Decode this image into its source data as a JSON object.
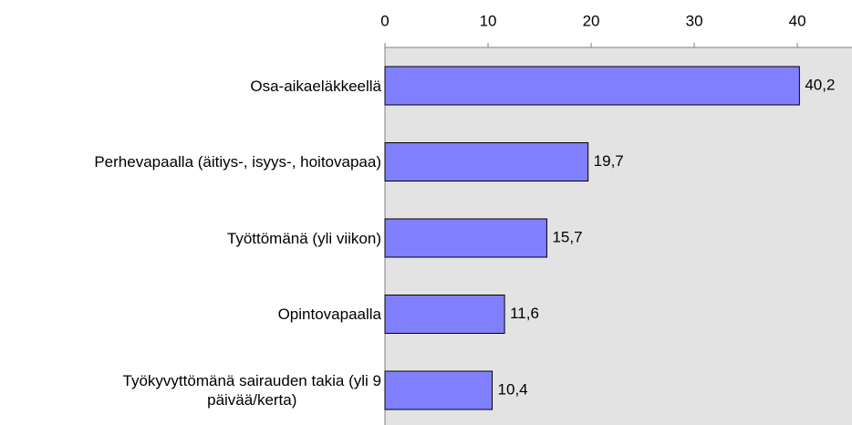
{
  "chart_data": {
    "type": "bar",
    "orientation": "horizontal",
    "categories": [
      "Osa-aikaeläkkeellä",
      "Perhevapaalla (äitiys-, isyys-, hoitovapaa)",
      "Työttömänä (yli viikon)",
      "Opintovapaalla",
      "Työkyvyttömänä sairauden takia (yli 9\npäivää/kerta)"
    ],
    "values": [
      40.2,
      19.7,
      15.7,
      11.6,
      10.4
    ],
    "value_labels": [
      "40,2",
      "19,7",
      "15,7",
      "11,6",
      "10,4"
    ],
    "color": "#8080ff",
    "xlim": [
      0,
      45.3
    ],
    "xticks": [
      0,
      10,
      20,
      30,
      40
    ]
  }
}
